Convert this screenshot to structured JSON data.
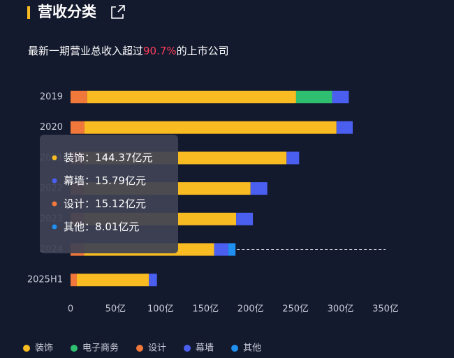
{
  "chart_data": {
    "type": "stacked-bar-horizontal",
    "title": "营收分类",
    "subtitle": [
      "最新一期营业总收入超过",
      "90.7%",
      "的上市公司"
    ],
    "categories": [
      "2019",
      "2020",
      "2021",
      "2022",
      "2023",
      "2024",
      "2025H1"
    ],
    "series": [
      {
        "name": "设计",
        "color": "#f0783a",
        "values": [
          18.6,
          15.5,
          15,
          15,
          15,
          15.12,
          7
        ],
        "value_labels": [
          null,
          null,
          null,
          null,
          null,
          "15.12亿元",
          null
        ]
      },
      {
        "name": "装饰",
        "color": "#f8bb22",
        "values": [
          232,
          280,
          225,
          185,
          169,
          144.37,
          80
        ],
        "value_labels": [
          null,
          null,
          null,
          null,
          null,
          "144.37亿元",
          null
        ]
      },
      {
        "name": "电子商务",
        "color": "#2fbf71",
        "values": [
          40,
          null,
          null,
          null,
          null,
          null,
          null
        ]
      },
      {
        "name": "幕墙",
        "color": "#4a5ff0",
        "values": [
          18.6,
          18,
          14,
          18.6,
          18.6,
          15.79,
          9
        ],
        "value_labels": [
          null,
          null,
          null,
          null,
          null,
          "15.79亿元",
          null
        ]
      },
      {
        "name": "其他",
        "color": "#1f8ff0",
        "values": [
          null,
          null,
          null,
          null,
          null,
          8.01,
          null
        ],
        "value_labels": [
          null,
          null,
          null,
          null,
          null,
          "8.01亿元",
          null
        ]
      }
    ],
    "xlim": [
      0,
      350
    ],
    "xticks": [
      0,
      {
        "value": 50,
        "label": "50亿"
      },
      {
        "value": 100,
        "label": "100亿"
      },
      {
        "value": 150,
        "label": "150亿"
      },
      {
        "value": 200,
        "label": "200亿"
      },
      {
        "value": 250,
        "label": "250亿"
      },
      {
        "value": 300,
        "label": "300亿"
      },
      {
        "value": 350,
        "label": "350亿"
      }
    ],
    "legend_order": [
      1,
      2,
      0,
      3,
      4
    ],
    "tooltip_order": [
      1,
      3,
      0,
      4
    ],
    "tooltip_separator": "："
  }
}
